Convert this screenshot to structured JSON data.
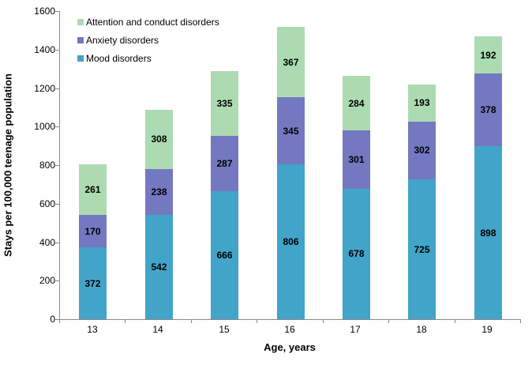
{
  "chart_data": {
    "type": "bar",
    "stacked": true,
    "xlabel": "Age, years",
    "ylabel": "Stays per 100,000 teenage population",
    "categories": [
      "13",
      "14",
      "15",
      "16",
      "17",
      "18",
      "19"
    ],
    "series": [
      {
        "name": "Mood disorders",
        "color": "#42A4C9",
        "values": [
          372,
          542,
          666,
          806,
          678,
          725,
          898
        ]
      },
      {
        "name": "Anxiety disorders",
        "color": "#7478C1",
        "values": [
          170,
          238,
          287,
          345,
          301,
          302,
          378
        ]
      },
      {
        "name": "Attention and conduct disorders",
        "color": "#ACDBB2",
        "values": [
          261,
          308,
          335,
          367,
          284,
          193,
          192
        ]
      }
    ],
    "legend": {
      "position": "top-left",
      "order": [
        "Attention and conduct disorders",
        "Anxiety disorders",
        "Mood disorders"
      ]
    },
    "ylim": [
      0,
      1600
    ],
    "yticks": [
      0,
      200,
      400,
      600,
      800,
      1000,
      1200,
      1400,
      1600
    ],
    "grid": false,
    "axis_color": "#898989",
    "label_color": "#000000"
  }
}
